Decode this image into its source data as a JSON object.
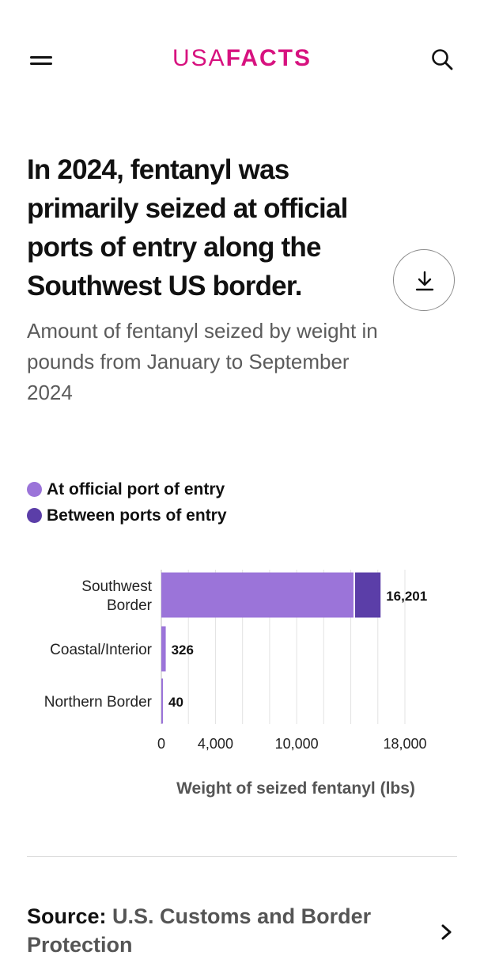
{
  "header": {
    "logo_light": "USA",
    "logo_bold": "FACTS",
    "logo_color": "#d7127f",
    "menu_icon": "hamburger-icon",
    "search_icon": "search-icon"
  },
  "title": "In 2024, fentanyl was primarily seized at official ports of entry along the Southwest US border.",
  "subtitle": "Amount of fentanyl seized by weight in pounds from January to September 2024",
  "download_icon": "download-icon",
  "chart_data": {
    "type": "bar",
    "orientation": "horizontal",
    "stacked": true,
    "categories": [
      "Southwest Border",
      "Coastal/Interior",
      "Northern Border"
    ],
    "category_lines": [
      [
        "Southwest",
        "Border"
      ],
      [
        "Coastal/Interior"
      ],
      [
        "Northern Border"
      ]
    ],
    "series": [
      {
        "name": "At official port of entry",
        "color": "#9b74d9",
        "values": [
          14200,
          326,
          40
        ]
      },
      {
        "name": "Between ports of entry",
        "color": "#5b3ea8",
        "values": [
          2001,
          0,
          0
        ]
      }
    ],
    "totals": [
      "16,201",
      "326",
      "40"
    ],
    "xlabel": "Weight of seized fentanyl (lbs)",
    "xlim": [
      0,
      18000
    ],
    "ticks": [
      0,
      4000,
      10000,
      18000
    ],
    "tick_labels": [
      "0",
      "4,000",
      "10,000",
      "18,000"
    ],
    "gridlines": [
      0,
      2000,
      4000,
      6000,
      8000,
      10000,
      12000,
      14000,
      16000,
      18000
    ],
    "grid": true,
    "legend_position": "top-left"
  },
  "source": {
    "label": "Source:",
    "text": "U.S. Customs and Border Protection",
    "chevron_icon": "chevron-right-icon"
  }
}
